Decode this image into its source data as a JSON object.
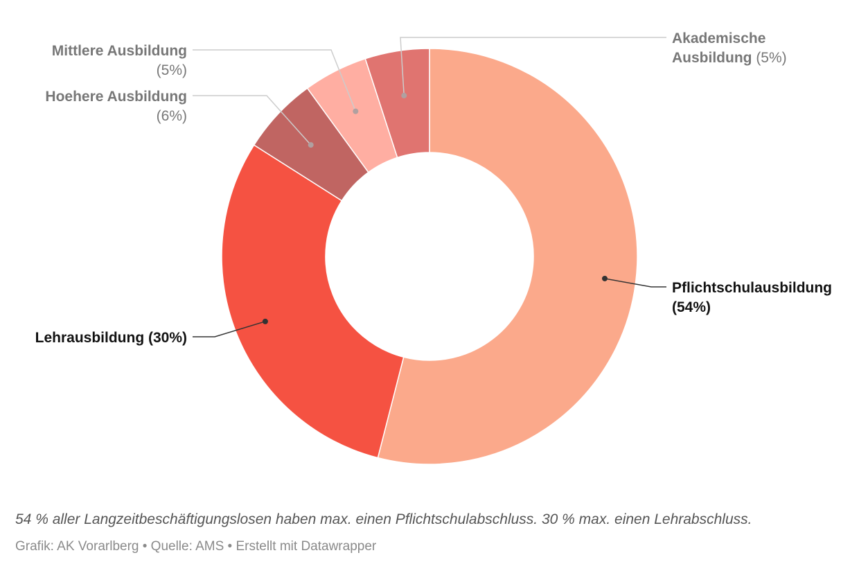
{
  "chart_data": {
    "type": "pie",
    "variant": "donut",
    "slices": [
      {
        "label": "Pflichtschulausbildung",
        "pct_text": "(54%)",
        "value": 54,
        "color": "#fba98b",
        "label_color": "#111111",
        "emphasis": true
      },
      {
        "label": "Lehrausbildung",
        "pct_text": "(30%)",
        "value": 30,
        "color": "#f55242",
        "label_color": "#111111",
        "emphasis": true
      },
      {
        "label": "Hoehere Ausbildung",
        "pct_text": "(6%)",
        "value": 6,
        "color": "#c06562",
        "label_color": "#777777",
        "emphasis": false
      },
      {
        "label": "Mittlere Ausbildung",
        "pct_text": "(5%)",
        "value": 5,
        "color": "#ffaea2",
        "label_color": "#777777",
        "emphasis": false
      },
      {
        "label": "Akademische Ausbildung",
        "pct_text": "(5%)",
        "value": 5,
        "color": "#e07470",
        "label_color": "#777777",
        "emphasis": false
      }
    ],
    "start": "12 o'clock",
    "direction": "clockwise"
  },
  "footer": {
    "note": "54 % aller Langzeitbeschäftigungslosen haben max. einen Pflichtschulabschluss. 30 % max. einen Lehrabschluss.",
    "credit": "Grafik: AK Vorarlberg • Quelle: AMS • Erstellt mit Datawrapper"
  }
}
